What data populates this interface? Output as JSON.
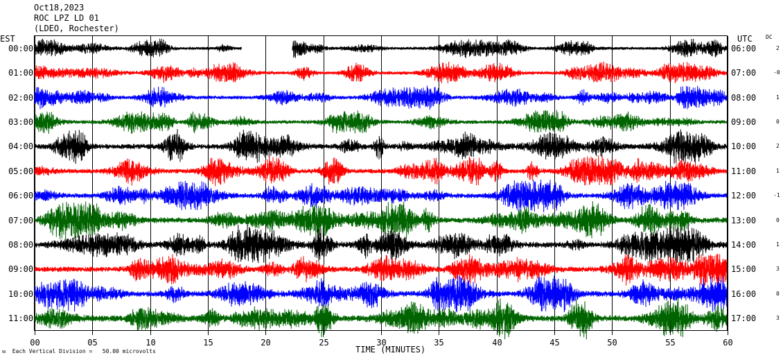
{
  "header": {
    "date": "Oct18,2023",
    "station": "ROC LPZ LD 01",
    "network": "(LDEO, Rochester)"
  },
  "labels": {
    "left_tz": "EST",
    "right_tz": "UTC",
    "dc": "DC",
    "xlabel": "TIME (MINUTES)",
    "footer": "Each Vertical Division =   50.00 microvolts"
  },
  "colors": [
    "#000000",
    "#ff0000",
    "#0000ff",
    "#006400"
  ],
  "chart_data": {
    "type": "line",
    "xlabel": "TIME (MINUTES)",
    "xlim": [
      0,
      60
    ],
    "xticks": [
      "00",
      "05",
      "10",
      "15",
      "20",
      "25",
      "30",
      "35",
      "40",
      "45",
      "50",
      "55",
      "60"
    ],
    "rows": [
      {
        "est": "00:00",
        "utc": "06:00",
        "dc": "2",
        "color": "#000000",
        "amp": 0.45,
        "gap": [
          17.9,
          22.3
        ]
      },
      {
        "est": "01:00",
        "utc": "07:00",
        "dc": "-0",
        "color": "#ff0000",
        "amp": 0.5
      },
      {
        "est": "02:00",
        "utc": "08:00",
        "dc": "1",
        "color": "#0000ff",
        "amp": 0.55
      },
      {
        "est": "03:00",
        "utc": "09:00",
        "dc": "0",
        "color": "#006400",
        "amp": 0.55
      },
      {
        "est": "04:00",
        "utc": "10:00",
        "dc": "2",
        "color": "#000000",
        "amp": 0.8
      },
      {
        "est": "05:00",
        "utc": "11:00",
        "dc": "1",
        "color": "#ff0000",
        "amp": 0.7
      },
      {
        "est": "06:00",
        "utc": "12:00",
        "dc": "-1",
        "color": "#0000ff",
        "amp": 0.75
      },
      {
        "est": "07:00",
        "utc": "13:00",
        "dc": "0",
        "color": "#006400",
        "amp": 0.85
      },
      {
        "est": "08:00",
        "utc": "14:00",
        "dc": "1",
        "color": "#000000",
        "amp": 0.9
      },
      {
        "est": "09:00",
        "utc": "15:00",
        "dc": "3",
        "color": "#ff0000",
        "amp": 0.8
      },
      {
        "est": "10:00",
        "utc": "16:00",
        "dc": "0",
        "color": "#0000ff",
        "amp": 0.85
      },
      {
        "est": "11:00",
        "utc": "17:00",
        "dc": "3",
        "color": "#006400",
        "amp": 0.95
      }
    ]
  }
}
